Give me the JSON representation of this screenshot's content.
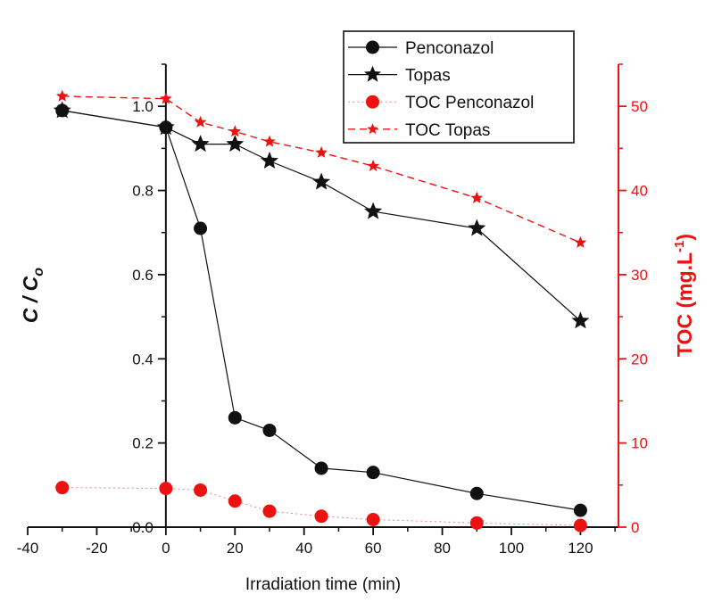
{
  "figure": {
    "background": "#ffffff"
  },
  "colors": {
    "black": "#111111",
    "red": "#ee1111",
    "red_light": "#f08080",
    "legend_border": "#111111"
  },
  "labels": {
    "xlabel": "Irradiation time (min)",
    "ylabel_left_main": "C / C",
    "ylabel_left_sub": "o",
    "ylabel_right_main": "TOC (mg.L",
    "ylabel_right_sup": "-1",
    "ylabel_right_close": ")"
  },
  "chart_data": {
    "type": "line",
    "title": "",
    "xlabel": "Irradiation time (min)",
    "ylabel_left": "C / Co",
    "ylabel_right": "TOC (mg.L-1)",
    "grid": false,
    "legend_position": "top-center-inside",
    "xlim": [
      -40,
      131
    ],
    "ylim_left": [
      0,
      1.1
    ],
    "ylim_right": [
      0,
      55
    ],
    "xticks": [
      -40,
      -20,
      0,
      20,
      40,
      60,
      80,
      100,
      120
    ],
    "xtick_labels": [
      "-40",
      "-20",
      "0",
      "20",
      "40",
      "60",
      "80",
      "100",
      "120"
    ],
    "xminorticks": [
      -30,
      -10,
      10,
      30,
      50,
      70,
      90,
      110,
      130
    ],
    "yticks_left": [
      0,
      0.2,
      0.4,
      0.6,
      0.8,
      1.0
    ],
    "ytick_labels_left": [
      "0.0",
      "0.2",
      "0.4",
      "0.6",
      "0.8",
      "1.0"
    ],
    "yminorticks_left": [
      0.1,
      0.3,
      0.5,
      0.7,
      0.9,
      1.1
    ],
    "yticks_right": [
      0,
      10,
      20,
      30,
      40,
      50
    ],
    "ytick_labels_right": [
      "0",
      "10",
      "20",
      "30",
      "40",
      "50"
    ],
    "yminorticks_right": [
      5,
      15,
      25,
      35,
      45,
      55
    ],
    "x": [
      -30,
      0,
      10,
      20,
      30,
      45,
      60,
      90,
      120
    ],
    "series": [
      {
        "name": "Penconazol",
        "axis": "left",
        "marker": "circle",
        "line": "solid",
        "color": "#111111",
        "values": [
          0.99,
          0.95,
          0.71,
          0.26,
          0.23,
          0.14,
          0.13,
          0.08,
          0.04
        ]
      },
      {
        "name": "Topas",
        "axis": "left",
        "marker": "star",
        "line": "solid",
        "color": "#111111",
        "values": [
          0.99,
          0.95,
          0.91,
          0.91,
          0.87,
          0.82,
          0.75,
          0.71,
          0.49
        ]
      },
      {
        "name": "TOC Penconazol",
        "axis": "right",
        "marker": "circle",
        "line": "dotted",
        "color": "#ee1111",
        "line_color": "#f08080",
        "values": [
          4.7,
          4.6,
          4.4,
          3.1,
          1.9,
          1.3,
          0.9,
          0.5,
          0.2
        ]
      },
      {
        "name": "TOC Topas",
        "axis": "right",
        "marker": "star",
        "line": "dashed",
        "color": "#ee1111",
        "values": [
          51.2,
          50.9,
          48.1,
          47.0,
          45.8,
          44.5,
          42.9,
          39.1,
          33.8
        ]
      }
    ]
  }
}
